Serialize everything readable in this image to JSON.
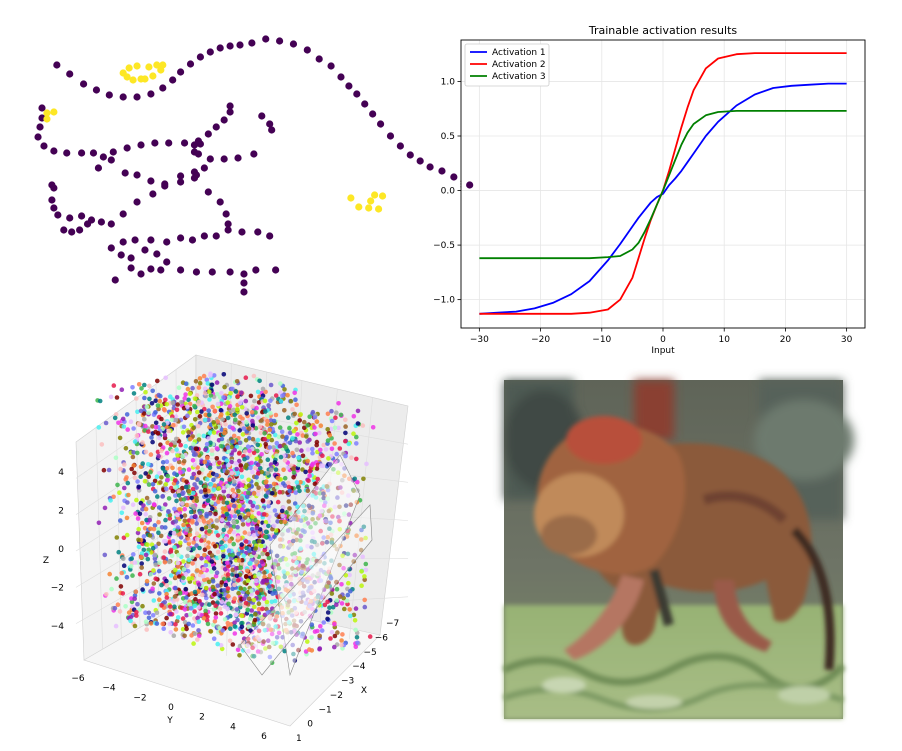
{
  "chart_data": [
    {
      "id": "point-clusters",
      "type": "scatter",
      "title": "",
      "xlabel": "",
      "ylabel": "",
      "axes_visible": false,
      "colors": {
        "background_points": "#440154",
        "highlight_points": "#fde725"
      },
      "purple_points": [
        [
          -0.45,
          1.25
        ],
        [
          -0.32,
          1.16
        ],
        [
          -0.18,
          1.06
        ],
        [
          -0.05,
          1.0
        ],
        [
          0.08,
          0.95
        ],
        [
          0.22,
          0.93
        ],
        [
          0.36,
          0.93
        ],
        [
          0.5,
          0.96
        ],
        [
          0.62,
          1.02
        ],
        [
          0.72,
          1.1
        ],
        [
          0.8,
          1.18
        ],
        [
          0.9,
          1.26
        ],
        [
          1.0,
          1.33
        ],
        [
          1.1,
          1.38
        ],
        [
          1.2,
          1.42
        ],
        [
          1.3,
          1.44
        ],
        [
          1.4,
          1.45
        ],
        [
          1.52,
          1.47
        ],
        [
          1.66,
          1.51
        ],
        [
          1.8,
          1.49
        ],
        [
          1.94,
          1.46
        ],
        [
          2.08,
          1.4
        ],
        [
          2.2,
          1.31
        ],
        [
          2.32,
          1.24
        ],
        [
          2.42,
          1.13
        ],
        [
          2.5,
          1.04
        ],
        [
          2.58,
          0.96
        ],
        [
          2.66,
          0.86
        ],
        [
          2.74,
          0.76
        ],
        [
          2.82,
          0.66
        ],
        [
          2.92,
          0.54
        ],
        [
          3.02,
          0.44
        ],
        [
          3.12,
          0.35
        ],
        [
          3.22,
          0.29
        ],
        [
          3.32,
          0.23
        ],
        [
          3.44,
          0.19
        ],
        [
          3.56,
          0.13
        ],
        [
          3.72,
          0.05
        ],
        [
          -0.6,
          0.82
        ],
        [
          -0.6,
          0.72
        ],
        [
          -0.62,
          0.63
        ],
        [
          -0.64,
          0.53
        ],
        [
          -0.58,
          0.44
        ],
        [
          -0.48,
          0.39
        ],
        [
          -0.35,
          0.37
        ],
        [
          -0.2,
          0.37
        ],
        [
          -0.08,
          0.37
        ],
        [
          0.02,
          0.33
        ],
        [
          0.12,
          0.38
        ],
        [
          0.26,
          0.42
        ],
        [
          0.4,
          0.45
        ],
        [
          0.54,
          0.47
        ],
        [
          0.68,
          0.47
        ],
        [
          0.84,
          0.47
        ],
        [
          0.94,
          0.45
        ],
        [
          1.0,
          0.46
        ],
        [
          1.3,
          0.84
        ],
        [
          1.3,
          0.78
        ],
        [
          1.24,
          0.7
        ],
        [
          1.16,
          0.63
        ],
        [
          1.08,
          0.56
        ],
        [
          0.98,
          0.49
        ],
        [
          0.94,
          0.38
        ],
        [
          0.98,
          0.36
        ],
        [
          1.1,
          0.31
        ],
        [
          1.24,
          0.31
        ],
        [
          1.38,
          0.32
        ],
        [
          1.54,
          0.36
        ],
        [
          1.62,
          0.74
        ],
        [
          1.7,
          0.66
        ],
        [
          1.72,
          0.6
        ],
        [
          -0.03,
          0.22
        ],
        [
          0.1,
          0.3
        ],
        [
          0.24,
          0.17
        ],
        [
          0.36,
          0.15
        ],
        [
          0.5,
          0.09
        ],
        [
          0.64,
          0.06
        ],
        [
          0.8,
          0.14
        ],
        [
          0.94,
          0.18
        ],
        [
          1.04,
          0.22
        ],
        [
          0.96,
          0.15
        ],
        [
          -0.48,
          0.02
        ],
        [
          -0.5,
          0.05
        ],
        [
          -0.5,
          -0.1
        ],
        [
          -0.48,
          -0.18
        ],
        [
          -0.44,
          -0.25
        ],
        [
          -0.32,
          -0.28
        ],
        [
          -0.2,
          -0.26
        ],
        [
          -0.1,
          -0.3
        ],
        [
          0.0,
          -0.32
        ],
        [
          0.1,
          -0.34
        ],
        [
          0.22,
          -0.24
        ],
        [
          0.36,
          -0.12
        ],
        [
          0.52,
          -0.04
        ],
        [
          0.64,
          0.04
        ],
        [
          0.8,
          0.08
        ],
        [
          0.94,
          0.12
        ],
        [
          1.08,
          -0.02
        ],
        [
          1.2,
          -0.12
        ],
        [
          1.26,
          -0.24
        ],
        [
          1.28,
          -0.34
        ],
        [
          -0.14,
          -0.34
        ],
        [
          -0.22,
          -0.4
        ],
        [
          -0.3,
          -0.42
        ],
        [
          -0.38,
          -0.4
        ],
        [
          0.1,
          -0.58
        ],
        [
          0.22,
          -0.52
        ],
        [
          0.34,
          -0.5
        ],
        [
          0.5,
          -0.5
        ],
        [
          0.66,
          -0.52
        ],
        [
          0.8,
          -0.48
        ],
        [
          0.92,
          -0.5
        ],
        [
          1.04,
          -0.46
        ],
        [
          1.16,
          -0.46
        ],
        [
          1.28,
          -0.4
        ],
        [
          1.42,
          -0.42
        ],
        [
          1.58,
          -0.42
        ],
        [
          1.7,
          -0.46
        ],
        [
          0.2,
          -0.65
        ],
        [
          0.3,
          -0.68
        ],
        [
          0.44,
          -0.6
        ],
        [
          0.56,
          -0.64
        ],
        [
          0.66,
          -0.72
        ],
        [
          0.8,
          -0.8
        ],
        [
          0.96,
          -0.82
        ],
        [
          1.12,
          -0.82
        ],
        [
          1.3,
          -0.82
        ],
        [
          1.44,
          -0.84
        ],
        [
          1.56,
          -0.8
        ],
        [
          1.76,
          -0.8
        ],
        [
          0.3,
          -0.78
        ],
        [
          0.4,
          -0.84
        ],
        [
          0.5,
          -0.79
        ],
        [
          0.6,
          -0.8
        ],
        [
          0.14,
          -0.9
        ],
        [
          1.44,
          -0.93
        ],
        [
          1.44,
          -1.02
        ]
      ],
      "yellow_points": [
        [
          0.22,
          1.17
        ],
        [
          0.28,
          1.22
        ],
        [
          0.36,
          1.24
        ],
        [
          0.48,
          1.23
        ],
        [
          0.56,
          1.25
        ],
        [
          0.62,
          1.25
        ],
        [
          0.6,
          1.2
        ],
        [
          0.52,
          1.14
        ],
        [
          0.44,
          1.11
        ],
        [
          0.4,
          1.11
        ],
        [
          0.32,
          1.1
        ],
        [
          0.26,
          1.13
        ],
        [
          -0.55,
          0.77
        ],
        [
          -0.55,
          0.71
        ],
        [
          -0.48,
          0.78
        ],
        [
          2.52,
          -0.08
        ],
        [
          2.6,
          -0.17
        ],
        [
          2.7,
          -0.18
        ],
        [
          2.76,
          -0.05
        ],
        [
          2.84,
          -0.06
        ],
        [
          2.8,
          -0.19
        ],
        [
          2.72,
          -0.11
        ]
      ]
    },
    {
      "id": "activation-results",
      "type": "line",
      "title": "Trainable activation results",
      "xlabel": "Input",
      "ylabel": "···",
      "xlim": [
        -33,
        33
      ],
      "ylim": [
        -1.26,
        1.38
      ],
      "xticks": [
        -30,
        -20,
        -10,
        0,
        10,
        20,
        30
      ],
      "xtick_labels": [
        "−30",
        "−20",
        "−10",
        "0",
        "10",
        "20",
        "30"
      ],
      "yticks": [
        -1.0,
        -0.5,
        0.0,
        0.5,
        1.0
      ],
      "ytick_labels": [
        "−1.0",
        "−0.5",
        "0.0",
        "0.5",
        "1.0"
      ],
      "grid": true,
      "legend_position": "top-left",
      "x": [
        -30,
        -27,
        -24,
        -21,
        -18,
        -15,
        -12,
        -9,
        -7,
        -5,
        -4,
        -3,
        -2,
        -1,
        0,
        1,
        2,
        3,
        4,
        5,
        7,
        9,
        12,
        15,
        18,
        21,
        24,
        27,
        30
      ],
      "series": [
        {
          "name": "Activation 1",
          "color": "#0000ff",
          "values": [
            -1.13,
            -1.12,
            -1.11,
            -1.08,
            -1.03,
            -0.95,
            -0.83,
            -0.64,
            -0.49,
            -0.33,
            -0.25,
            -0.18,
            -0.11,
            -0.06,
            -0.03,
            0.05,
            0.11,
            0.18,
            0.26,
            0.34,
            0.5,
            0.63,
            0.78,
            0.88,
            0.94,
            0.96,
            0.97,
            0.98,
            0.98
          ]
        },
        {
          "name": "Activation 2",
          "color": "#ff0000",
          "values": [
            -1.13,
            -1.13,
            -1.13,
            -1.13,
            -1.13,
            -1.13,
            -1.12,
            -1.09,
            -1.0,
            -0.8,
            -0.62,
            -0.44,
            -0.27,
            -0.13,
            0.0,
            0.18,
            0.38,
            0.58,
            0.76,
            0.92,
            1.12,
            1.21,
            1.25,
            1.26,
            1.26,
            1.26,
            1.26,
            1.26,
            1.26
          ]
        },
        {
          "name": "Activation 3",
          "color": "#008000",
          "values": [
            -0.62,
            -0.62,
            -0.62,
            -0.62,
            -0.62,
            -0.62,
            -0.62,
            -0.61,
            -0.6,
            -0.54,
            -0.48,
            -0.38,
            -0.26,
            -0.13,
            0.0,
            0.14,
            0.28,
            0.42,
            0.53,
            0.61,
            0.69,
            0.72,
            0.73,
            0.73,
            0.73,
            0.73,
            0.73,
            0.73,
            0.73
          ]
        }
      ]
    },
    {
      "id": "scatter-3d",
      "type": "scatter",
      "title": "",
      "xlabel": "X",
      "ylabel": "Y",
      "zlabel": "Z",
      "xlim": [
        -7,
        1
      ],
      "ylim": [
        -6,
        6
      ],
      "zlim": [
        -5,
        5
      ],
      "x_tick_labels": [
        "−7",
        "−6",
        "−5",
        "−4",
        "−3",
        "−2",
        "−1",
        "0",
        "1"
      ],
      "y_tick_labels": [
        "−6",
        "−4",
        "−2",
        "0",
        "2",
        "4",
        "6"
      ],
      "z_tick_labels": [
        "−4",
        "−2",
        "0",
        "2",
        "4"
      ],
      "grid": true,
      "point_colors": [
        "#e6194b",
        "#3cb44b",
        "#4363d8",
        "#f58231",
        "#911eb4",
        "#46f0f0",
        "#f032e6",
        "#bcf60c",
        "#fabebe",
        "#008080",
        "#e6beff",
        "#9a6324",
        "#800000",
        "#aaffc3",
        "#808000",
        "#000075",
        "#a9a9a9",
        "#7f7fff",
        "#ff7f50",
        "#6a5acd"
      ],
      "approx_point_count": 3000
    }
  ],
  "photo": {
    "subject": "lion-photo",
    "colors": {
      "fur": "#8b5a3a",
      "fur_light": "#b07a55",
      "grass": "#8fae6a",
      "background": "#6b7060",
      "pink": "#c98a80"
    }
  }
}
